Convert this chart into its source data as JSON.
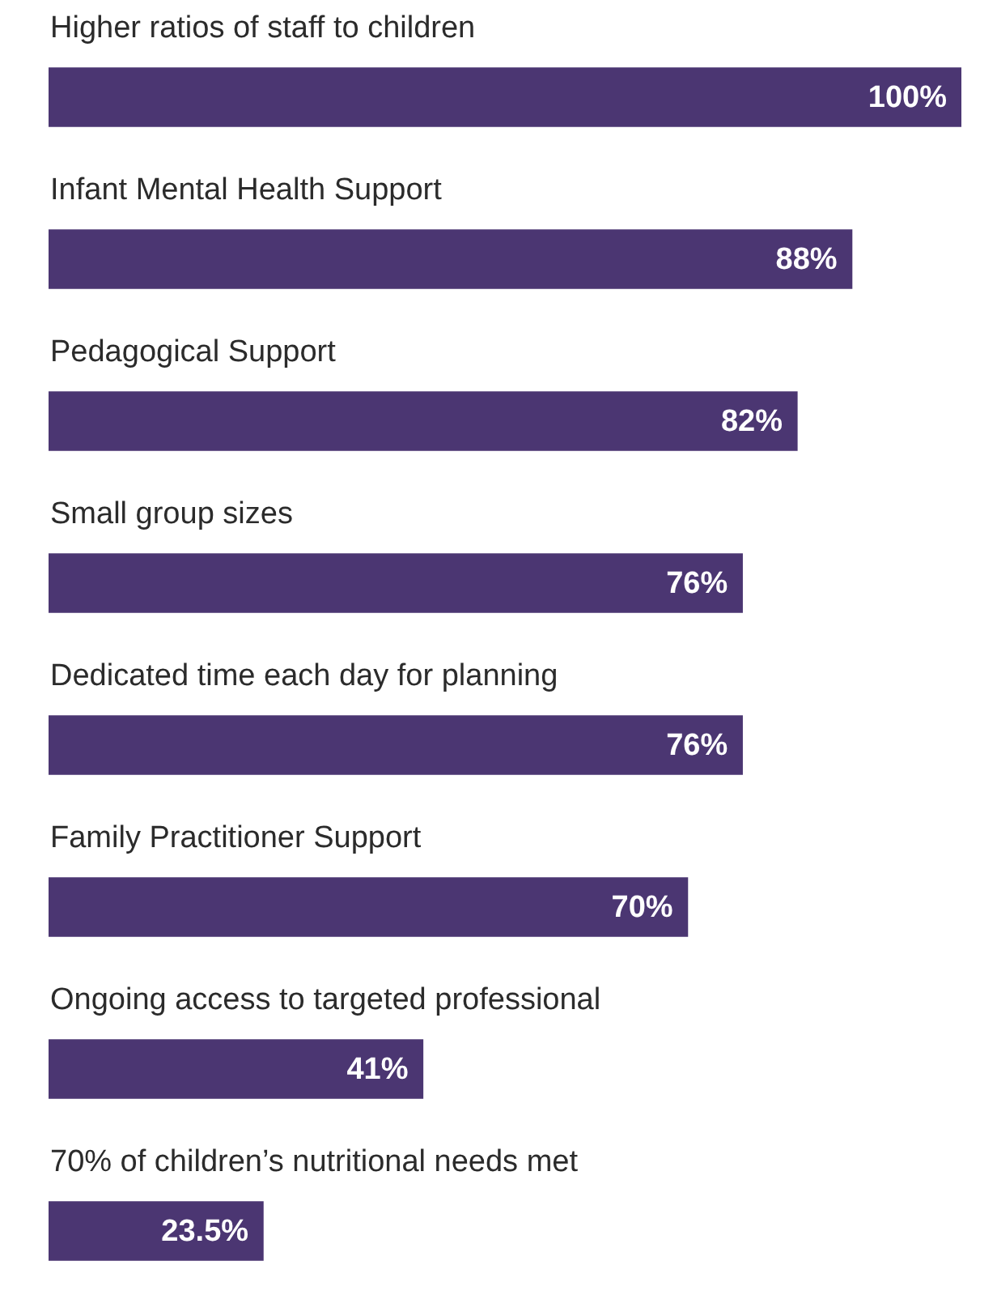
{
  "chart_data": {
    "type": "bar",
    "orientation": "horizontal",
    "color": "#4b3672",
    "categories": [
      "Higher ratios of staff to children",
      "Infant Mental Health Support",
      "Pedagogical Support",
      "Small group sizes",
      "Dedicated time each day for planning",
      "Family Practitioner Support",
      "Ongoing access to targeted professional",
      "70% of children’s nutritional needs met"
    ],
    "values": [
      100,
      88,
      82,
      76,
      76,
      70,
      41,
      23.5
    ],
    "value_labels": [
      "100%",
      "88%",
      "82%",
      "76%",
      "76%",
      "70%",
      "41%",
      "23.5%"
    ],
    "legend": false
  }
}
